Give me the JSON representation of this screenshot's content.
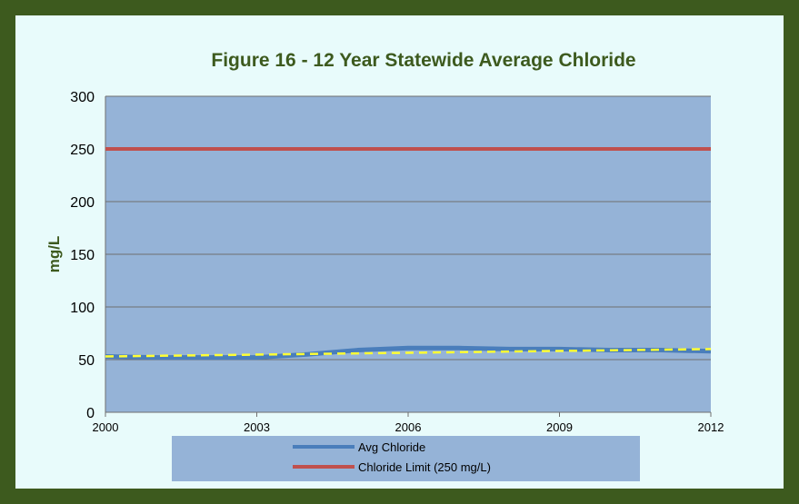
{
  "chart_data": {
    "type": "line",
    "title": "Figure 16 - 12 Year Statewide Average Chloride",
    "xlabel": "",
    "ylabel": "mg/L",
    "xlim": [
      2000,
      2012
    ],
    "ylim": [
      0,
      300
    ],
    "x_ticks": [
      "2000",
      "2003",
      "2006",
      "2009",
      "2012"
    ],
    "y_ticks": [
      "0",
      "50",
      "100",
      "150",
      "200",
      "250",
      "300"
    ],
    "grid": true,
    "legend_position": "bottom",
    "series": [
      {
        "name": "Avg Chloride",
        "color": "#4a7ebb",
        "x": [
          2000,
          2001,
          2002,
          2003,
          2004,
          2005,
          2006,
          2007,
          2008,
          2009,
          2010,
          2011,
          2012
        ],
        "y": [
          53,
          52,
          52,
          52,
          55,
          59,
          61,
          61,
          60,
          60,
          59,
          59,
          58
        ]
      },
      {
        "name": "Chloride Limit (250 mg/L)",
        "color": "#c0504d",
        "x": [
          2000,
          2012
        ],
        "y": [
          250,
          250
        ]
      }
    ],
    "trendline": {
      "color": "#ffff33",
      "style": "dashed",
      "x": [
        2000,
        2012
      ],
      "y": [
        53,
        60
      ]
    },
    "plot_background": "#95b3d7"
  }
}
